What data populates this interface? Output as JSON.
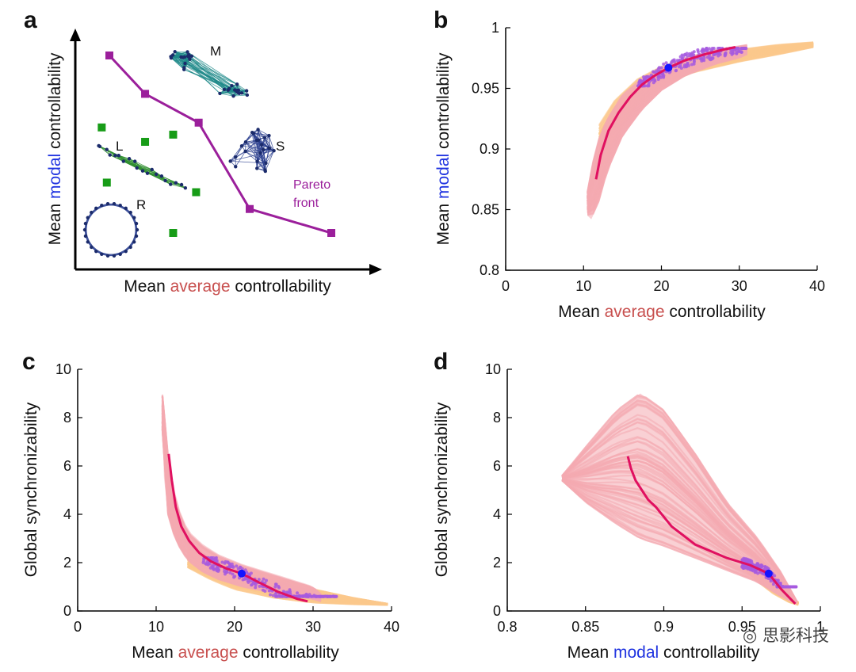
{
  "colors": {
    "average": "#c8504f",
    "modal": "#1f33e0",
    "pareto": "#9b1f9b",
    "green": "#179c17",
    "pink": "#f4a9b0",
    "orange": "#fbc98c",
    "red": "#e01060",
    "purple": "#a65bdf",
    "blue": "#1414ff",
    "navy": "#1b2b6b"
  },
  "watermark": "思影科技",
  "panels": {
    "a": {
      "label": "a",
      "ylabel": [
        "Mean ",
        "modal",
        " controllability"
      ],
      "xlabel": [
        "Mean ",
        "average",
        " controllability"
      ],
      "network_labels": [
        "M",
        "L",
        "S",
        "R"
      ],
      "pareto_label": [
        "Pareto",
        "front"
      ]
    },
    "b": {
      "label": "b",
      "ylabel": [
        "Mean ",
        "modal",
        " controllability"
      ],
      "xlabel": [
        "Mean ",
        "average",
        " controllability"
      ],
      "xticks": [
        "0",
        "10",
        "20",
        "30",
        "40"
      ],
      "yticks": [
        "0.8",
        "0.85",
        "0.9",
        "0.95",
        "1"
      ]
    },
    "c": {
      "label": "c",
      "ylabel": "Global synchronizability",
      "xlabel": [
        "Mean ",
        "average",
        " controllability"
      ],
      "xticks": [
        "0",
        "10",
        "20",
        "30",
        "40"
      ],
      "yticks": [
        "0",
        "2",
        "4",
        "6",
        "8",
        "10"
      ]
    },
    "d": {
      "label": "d",
      "ylabel": "Global synchronizability",
      "xlabel": [
        "Mean ",
        "modal",
        " controllability"
      ],
      "xticks": [
        "0.8",
        "0.85",
        "0.9",
        "0.95",
        "1"
      ],
      "yticks": [
        "0",
        "2",
        "4",
        "6",
        "8",
        "10"
      ]
    }
  },
  "chart_data": [
    {
      "panel": "a",
      "type": "scatter",
      "xlabel": "Mean average controllability",
      "ylabel": "Mean modal controllability",
      "series": [
        {
          "name": "Pareto front",
          "style": "line+square",
          "x": [
            0.13,
            0.27,
            0.48,
            0.68,
            1.0
          ],
          "y": [
            0.88,
            0.72,
            0.6,
            0.24,
            0.14
          ]
        },
        {
          "style": "square",
          "x": [
            0.1,
            0.27,
            0.38,
            0.12,
            0.47,
            0.38
          ],
          "y": [
            0.58,
            0.52,
            0.55,
            0.35,
            0.31,
            0.14
          ]
        }
      ],
      "networks": [
        "M",
        "L",
        "S",
        "R"
      ]
    },
    {
      "panel": "b",
      "type": "scatter",
      "xlabel": "Mean average controllability",
      "ylabel": "Mean modal controllability",
      "xlim": [
        0,
        40
      ],
      "ylim": [
        0.8,
        1
      ],
      "series": [
        {
          "style": "line",
          "x": [
            11.6,
            12.2,
            13.2,
            14.5,
            16.0,
            17.5,
            19.0,
            20.9,
            23.0,
            25.5,
            28.0,
            29.5
          ],
          "y": [
            0.875,
            0.895,
            0.915,
            0.93,
            0.943,
            0.953,
            0.96,
            0.967,
            0.973,
            0.978,
            0.982,
            0.984
          ]
        },
        {
          "style": "point",
          "x": [
            20.9
          ],
          "y": [
            0.967
          ]
        }
      ],
      "bands": [
        {
          "color": "orange",
          "x": [
            12,
            14,
            17,
            20,
            24,
            30,
            35,
            39.5
          ],
          "lower": [
            0.88,
            0.91,
            0.937,
            0.952,
            0.963,
            0.972,
            0.978,
            0.984
          ],
          "upper": [
            0.92,
            0.94,
            0.958,
            0.968,
            0.976,
            0.982,
            0.986,
            0.988
          ]
        },
        {
          "color": "pink",
          "x": [
            10.5,
            11,
            12,
            13,
            15,
            17.5,
            20,
            23,
            27,
            30,
            31
          ],
          "lower": [
            0.845,
            0.842,
            0.856,
            0.88,
            0.91,
            0.932,
            0.948,
            0.96,
            0.97,
            0.975,
            0.978
          ],
          "upper": [
            0.865,
            0.885,
            0.91,
            0.925,
            0.945,
            0.958,
            0.967,
            0.975,
            0.982,
            0.985,
            0.986
          ]
        }
      ],
      "scatter_cloud": {
        "x_range": [
          17,
          31
        ],
        "y_range": [
          0.952,
          0.983
        ]
      }
    },
    {
      "panel": "c",
      "type": "scatter",
      "xlabel": "Mean average controllability",
      "ylabel": "Global synchronizability",
      "xlim": [
        0,
        40
      ],
      "ylim": [
        0,
        10
      ],
      "series": [
        {
          "style": "line",
          "x": [
            11.6,
            12.0,
            12.5,
            13.2,
            14.2,
            15.5,
            17.0,
            19.0,
            20.9,
            23.0,
            25.5,
            28.0,
            29.3
          ],
          "y": [
            6.5,
            5.4,
            4.3,
            3.5,
            2.9,
            2.4,
            2.05,
            1.75,
            1.55,
            1.2,
            0.8,
            0.5,
            0.4
          ]
        },
        {
          "style": "point",
          "x": [
            20.9
          ],
          "y": [
            1.55
          ]
        }
      ],
      "bands": [
        {
          "color": "orange",
          "x": [
            14,
            17,
            20,
            25,
            30,
            35,
            39.5
          ],
          "lower": [
            1.8,
            1.3,
            0.9,
            0.55,
            0.35,
            0.28,
            0.25
          ],
          "upper": [
            2.6,
            2.2,
            1.9,
            1.4,
            0.9,
            0.55,
            0.3
          ]
        },
        {
          "color": "pink",
          "x": [
            10.8,
            11,
            11.5,
            12.5,
            14,
            16,
            18,
            21,
            25,
            30,
            31
          ],
          "lower": [
            7.5,
            5.5,
            4.0,
            2.9,
            2.1,
            1.6,
            1.3,
            1.0,
            0.75,
            0.5,
            0.4
          ],
          "upper": [
            9.0,
            8.2,
            6.5,
            4.5,
            3.3,
            2.7,
            2.3,
            1.9,
            1.5,
            1.0,
            0.7
          ]
        }
      ],
      "scatter_cloud": {
        "x_range": [
          16,
          33
        ],
        "y_range": [
          0.6,
          2.2
        ]
      }
    },
    {
      "panel": "d",
      "type": "scatter",
      "xlabel": "Mean modal controllability",
      "ylabel": "Global synchronizability",
      "xlim": [
        0.8,
        1
      ],
      "ylim": [
        0,
        10
      ],
      "series": [
        {
          "style": "line",
          "x": [
            0.877,
            0.879,
            0.882,
            0.886,
            0.89,
            0.895,
            0.905,
            0.92,
            0.94,
            0.955,
            0.967,
            0.975,
            0.984
          ],
          "y": [
            6.4,
            5.9,
            5.4,
            5.0,
            4.6,
            4.3,
            3.5,
            2.75,
            2.2,
            1.9,
            1.55,
            0.9,
            0.3
          ]
        },
        {
          "style": "point",
          "x": [
            0.967
          ],
          "y": [
            1.55
          ]
        }
      ],
      "bands": [
        {
          "color": "orange",
          "x": [
            0.95,
            0.96,
            0.97,
            0.98,
            0.986
          ],
          "lower": [
            1.8,
            1.2,
            0.7,
            0.35,
            0.25
          ],
          "upper": [
            2.2,
            1.8,
            1.3,
            0.7,
            0.35
          ]
        },
        {
          "color": "pink",
          "x": [
            0.835,
            0.85,
            0.87,
            0.885,
            0.9,
            0.92,
            0.94,
            0.96,
            0.975,
            0.985
          ],
          "lower": [
            5.4,
            4.5,
            3.6,
            3.0,
            2.7,
            2.2,
            1.7,
            1.2,
            0.6,
            0.3
          ],
          "upper": [
            5.6,
            6.8,
            8.3,
            9.0,
            8.3,
            6.5,
            4.5,
            3.0,
            1.6,
            0.4
          ]
        }
      ],
      "scatter_cloud": {
        "x_range": [
          0.95,
          0.985
        ],
        "y_range": [
          1.0,
          2.2
        ]
      }
    }
  ]
}
